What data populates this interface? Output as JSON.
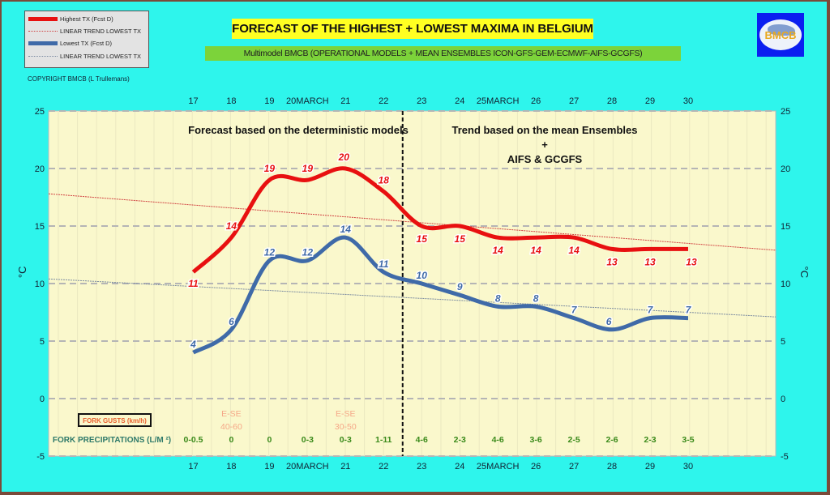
{
  "legend": {
    "items": [
      {
        "label": "Highest TX (Fcst D)",
        "color": "#e81010",
        "style": "thick"
      },
      {
        "label": "LINEAR TREND LOWEST  TX",
        "color": "#d04040",
        "style": "dotted"
      },
      {
        "label": "Lowest TX (Fcst D)",
        "color": "#3f6aa8",
        "style": "thick"
      },
      {
        "label": "LINEAR TREND LOWEST TX",
        "color": "#7a8aa0",
        "style": "dotted"
      }
    ]
  },
  "copyright": "COPYRIGHT BMCB (L Trullemans)",
  "title": "FORECAST OF THE HIGHEST + LOWEST MAXIMA IN BELGIUM",
  "subtitle": "Multimodel BMCB (OPERATIONAL MODELS + MEAN ENSEMBLES  ICON-GFS-GEM-ECMWF-AIFS-GCGFS)",
  "logo_text": "BMCB",
  "chart_data": {
    "type": "line",
    "title": "FORECAST OF THE HIGHEST + LOWEST MAXIMA IN BELGIUM",
    "ylabel": "°C",
    "ylim": [
      -5,
      25
    ],
    "yticks": [
      -5,
      0,
      5,
      10,
      15,
      20,
      25
    ],
    "grid": true,
    "x": [
      17,
      18,
      19,
      20,
      21,
      22,
      23,
      24,
      25,
      26,
      27,
      28,
      29,
      30
    ],
    "xtick_labels": [
      "17",
      "18",
      "19",
      "20MARCH",
      "21",
      "22",
      "23",
      "24",
      "25MARCH",
      "26",
      "27",
      "28",
      "29",
      "30"
    ],
    "xlim": [
      13.2,
      32.3
    ],
    "series": [
      {
        "name": "Highest TX (Fcst D)",
        "color": "#e81010",
        "values": [
          11,
          14,
          19,
          19,
          20,
          18,
          15,
          15,
          14,
          14,
          14,
          13,
          13,
          13
        ]
      },
      {
        "name": "Lowest TX (Fcst D)",
        "color": "#3f6aa8",
        "values": [
          4,
          6,
          12,
          12,
          14,
          11,
          10,
          9,
          8,
          8,
          7,
          6,
          7,
          7
        ]
      }
    ],
    "trend_lines": [
      {
        "name": "LINEAR TREND LOWEST  TX",
        "color": "#d04040",
        "start": [
          13.2,
          17.8
        ],
        "end": [
          32.3,
          12.9
        ]
      },
      {
        "name": "LINEAR TREND LOWEST TX",
        "color": "#7a8aa0",
        "start": [
          13.2,
          10.4
        ],
        "end": [
          32.3,
          7.1
        ]
      }
    ],
    "divider_x": 22.5,
    "annotations": {
      "left": "Forecast based on the deterministic models",
      "right_lines": [
        "Trend based on the mean Ensembles",
        "+",
        "AIFS & GCGFS"
      ]
    },
    "gusts": {
      "label": "FORK GUSTS (km/h)",
      "entries": [
        {
          "x": 18,
          "direction": "E-SE",
          "range": "40-60"
        },
        {
          "x": 21,
          "direction": "E-SE",
          "range": "30-50"
        }
      ]
    },
    "precipitation": {
      "label": "FORK PRECIPITATIONS (L/M ²)",
      "values": [
        "0-0.5",
        "0",
        "0",
        "0-3",
        "0-3",
        "1-11",
        "4-6",
        "2-3",
        "4-6",
        "3-6",
        "2-5",
        "2-6",
        "2-3",
        "3-5"
      ]
    }
  }
}
